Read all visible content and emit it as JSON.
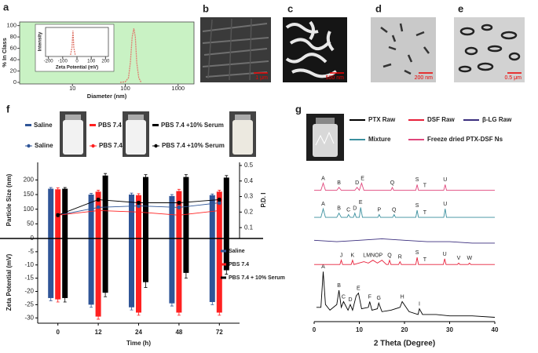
{
  "panel_labels": [
    "a",
    "b",
    "c",
    "d",
    "e",
    "f",
    "g"
  ],
  "micrographs": [
    {
      "scale_bar": "1 μm"
    },
    {
      "scale_bar": "500 nm"
    },
    {
      "scale_bar": "200 nm"
    },
    {
      "scale_bar": "0.5 μm"
    }
  ],
  "chart_data": [
    {
      "type": "line",
      "x_label": "Diameter (nm)",
      "y_label": "% In Class",
      "x_log": true,
      "xlim": [
        1,
        2000
      ],
      "xticks": [
        10,
        100,
        1000
      ],
      "ylim": [
        0,
        105
      ],
      "yticks": [
        0,
        20,
        40,
        60,
        80,
        100
      ],
      "background": "#c9f2c4",
      "series": [
        {
          "color": "#e07a6e",
          "x": [
            80,
            100,
            115,
            125,
            135,
            145,
            155,
            165,
            180,
            200
          ],
          "values": [
            0,
            1,
            8,
            35,
            80,
            95,
            80,
            35,
            8,
            0
          ]
        }
      ]
    },
    {
      "type": "line",
      "x_label": "Zeta Potential (mV)",
      "y_label": "Intensity",
      "xlim": [
        -220,
        220
      ],
      "xticks": [
        -200,
        -100,
        0,
        100,
        200
      ],
      "ylim": [
        0,
        110
      ],
      "series": [
        {
          "color": "#e07a6e",
          "x": [
            -45,
            -35,
            -28,
            -22,
            -12
          ],
          "values": [
            0,
            30,
            100,
            30,
            0
          ]
        }
      ]
    },
    {
      "type": "bar",
      "x_label": "Time (h)",
      "categories": [
        "0",
        "12",
        "24",
        "48",
        "72"
      ],
      "y_label": "Particle Size (nm)",
      "ylim": [
        0,
        260
      ],
      "yticks": [
        0,
        50,
        100,
        150,
        200
      ],
      "y2_label": "P.D. I",
      "y2lim": [
        0.03,
        0.52
      ],
      "y2ticks": [
        0.1,
        0.2,
        0.3,
        0.4,
        0.5
      ],
      "series": [
        {
          "name": "Saline",
          "color": "#2f5597",
          "values": [
            170,
            150,
            150,
            145,
            148
          ],
          "errors": [
            4,
            4,
            5,
            5,
            4
          ]
        },
        {
          "name": "PBS 7.4",
          "color": "#ff2020",
          "values": [
            168,
            160,
            148,
            162,
            160
          ],
          "errors": [
            5,
            5,
            5,
            6,
            5
          ]
        },
        {
          "name": "PBS 7.4 +10% Serum",
          "color": "#000000",
          "values": [
            170,
            215,
            210,
            210,
            208
          ],
          "errors": [
            4,
            7,
            8,
            8,
            7
          ]
        },
        {
          "name": "Saline",
          "color": "#2f5597",
          "type": "line",
          "axis": "y2",
          "values": [
            0.18,
            0.23,
            0.24,
            0.23,
            0.26
          ],
          "errors": [
            0.01,
            0.01,
            0.01,
            0.01,
            0.01
          ]
        },
        {
          "name": "PBS 7.4",
          "color": "#ff2020",
          "type": "line",
          "axis": "y2",
          "values": [
            0.18,
            0.21,
            0.2,
            0.18,
            0.21
          ],
          "errors": [
            0.01,
            0.01,
            0.01,
            0.01,
            0.01
          ]
        },
        {
          "name": "PBS 7.4 +10% Serum",
          "color": "#000000",
          "type": "line",
          "axis": "y2",
          "values": [
            0.18,
            0.28,
            0.26,
            0.26,
            0.28
          ],
          "errors": [
            0.01,
            0.01,
            0.01,
            0.01,
            0.01
          ]
        }
      ],
      "zeta_label": "Zeta Potential (mV)",
      "zeta_ylim": [
        -32,
        0
      ],
      "zeta_yticks": [
        -5,
        -10,
        -15,
        -20,
        -25,
        -30
      ],
      "zeta_series": [
        {
          "name": "Saline",
          "color": "#2f5597",
          "values": [
            -22.5,
            -25,
            -26,
            -24.5,
            -24
          ],
          "errors": [
            1,
            1,
            1,
            1,
            1
          ]
        },
        {
          "name": "PBS 7.4",
          "color": "#ff2020",
          "values": [
            -23,
            -29.5,
            -28,
            -28,
            -28
          ],
          "errors": [
            1,
            1,
            1,
            1,
            1
          ]
        },
        {
          "name": "PBS 7.4 + 10% Serum",
          "color": "#000000",
          "values": [
            -22.5,
            -20.5,
            -16.5,
            -13,
            -12
          ],
          "errors": [
            1.5,
            1.5,
            2,
            2,
            1.5
          ]
        }
      ]
    },
    {
      "type": "line",
      "x_label": "2 Theta (Degree)",
      "xlim": [
        0,
        40
      ],
      "xticks": [
        0,
        10,
        20,
        30,
        40
      ],
      "ylim": [
        0,
        100
      ],
      "series": [
        {
          "name": "PTX Raw",
          "color": "#000000",
          "x": [
            0.5,
            1.5,
            2,
            2.5,
            3.5,
            5,
            5.5,
            6,
            6.5,
            7.5,
            8,
            8.5,
            9.3,
            9.8,
            10.5,
            12,
            12.3,
            12.8,
            14,
            14.3,
            15,
            17,
            19,
            19.5,
            21,
            23,
            23.3,
            24,
            27,
            30,
            35,
            40
          ],
          "values": [
            10,
            10,
            35,
            12,
            8,
            12,
            22,
            10,
            14,
            8,
            12,
            8,
            18,
            20,
            9,
            10,
            14,
            8,
            9,
            13,
            7,
            8,
            10,
            14,
            7,
            5,
            9,
            5,
            5,
            4,
            4,
            3
          ],
          "peak_labels": {
            "x": [
              2,
              5.5,
              6.5,
              8,
              9.8,
              12.3,
              14.3,
              19.5,
              23.3
            ],
            "labels": [
              "A",
              "B",
              "C",
              "D",
              "E",
              "F",
              "G",
              "H",
              "I"
            ]
          }
        },
        {
          "name": "DSF Raw",
          "color": "#e8203a",
          "x": [
            0,
            5.7,
            6,
            6.3,
            8.2,
            8.5,
            8.8,
            11,
            12,
            13,
            14,
            15,
            16,
            16.4,
            16.7,
            17,
            18.7,
            19,
            19.3,
            22.5,
            22.8,
            23.1,
            28.6,
            28.9,
            29.2,
            31.7,
            32,
            32.3,
            34.1,
            34.4,
            34.7,
            40
          ],
          "values": [
            40,
            40,
            43,
            40,
            40,
            43,
            40,
            42,
            41,
            43,
            41,
            43,
            40,
            40,
            43,
            40,
            40,
            42,
            40,
            40,
            45,
            40,
            40,
            44,
            40,
            40,
            41,
            40,
            40,
            41,
            40,
            40
          ],
          "peak_labels": {
            "x": [
              6,
              8.5,
              13,
              16.7,
              19,
              22.8,
              24.5,
              28.9,
              32,
              34.4
            ],
            "labels": [
              "J",
              "K",
              "LMNOP",
              "Q",
              "R",
              "S",
              "T",
              "U",
              "V",
              "W"
            ]
          }
        },
        {
          "name": "β-LG Raw",
          "color": "#3b2e7e",
          "x": [
            0,
            5,
            10,
            15,
            20,
            25,
            30,
            35,
            40
          ],
          "values": [
            57,
            56,
            57,
            58,
            57,
            56,
            56,
            55,
            55
          ]
        },
        {
          "name": "Mixture",
          "color": "#3a8f9e",
          "x": [
            0,
            1.5,
            2,
            2.5,
            5,
            5.5,
            6,
            7.3,
            7.6,
            8,
            8.7,
            9,
            9.3,
            10,
            10.3,
            10.7,
            14.1,
            14.4,
            14.7,
            17.4,
            17.7,
            18,
            22.5,
            22.8,
            23.1,
            28.7,
            29,
            29.3,
            40
          ],
          "values": [
            73,
            73,
            79,
            73,
            73,
            76,
            73,
            73,
            75,
            73,
            73,
            76,
            73,
            73,
            80,
            73,
            73,
            75,
            73,
            73,
            75,
            73,
            73,
            78,
            73,
            73,
            79,
            73,
            73
          ],
          "peak_labels": {
            "x": [
              2,
              5.5,
              7.6,
              9,
              10.3,
              14.4,
              17.7,
              22.8,
              24.5,
              29
            ],
            "labels": [
              "A",
              "B",
              "C",
              "D",
              "E",
              "P",
              "Q",
              "S",
              "T",
              "U"
            ]
          }
        },
        {
          "name": "Freeze dried PTX-DSF Ns",
          "color": "#e0457b",
          "x": [
            0,
            1.5,
            2,
            2.5,
            5,
            5.5,
            6,
            9,
            9.5,
            10,
            10.5,
            11,
            17,
            17.3,
            17.6,
            22.5,
            22.8,
            23.1,
            28.7,
            29,
            29.3,
            40
          ],
          "values": [
            92,
            92,
            97,
            92,
            92,
            94,
            92,
            92,
            94,
            92,
            97,
            92,
            92,
            94,
            92,
            92,
            96,
            92,
            92,
            96,
            92,
            92
          ],
          "peak_labels": {
            "x": [
              2,
              5.5,
              9.5,
              10.7,
              17.3,
              22.8,
              24.5,
              29
            ],
            "labels": [
              "A",
              "B",
              "D",
              "E",
              "Q",
              "S",
              "T",
              "U"
            ]
          }
        }
      ]
    }
  ]
}
